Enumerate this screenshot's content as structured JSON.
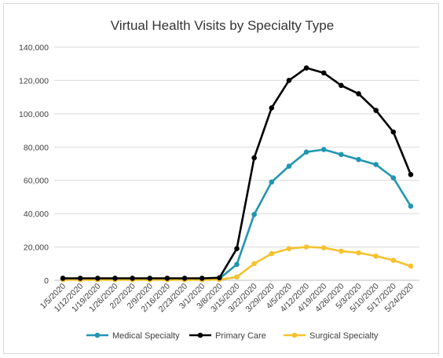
{
  "chart_data": {
    "type": "line",
    "title": "Virtual Health Visits by Specialty Type",
    "xlabel": "",
    "ylabel": "",
    "ylim": [
      0,
      140000
    ],
    "yticks": [
      0,
      20000,
      40000,
      60000,
      80000,
      100000,
      120000,
      140000
    ],
    "ytick_labels": [
      "0",
      "20,000",
      "40,000",
      "60,000",
      "80,000",
      "100,000",
      "120,000",
      "140,000"
    ],
    "categories": [
      "1/5/2020",
      "1/12/2020",
      "1/19/2020",
      "1/26/2020",
      "2/2/2020",
      "2/9/2020",
      "2/16/2020",
      "2/23/2020",
      "3/1/2020",
      "3/8/2020",
      "3/15/2020",
      "3/22/2020",
      "3/29/2020",
      "4/5/2020",
      "4/12/2020",
      "4/19/2020",
      "4/26/2020",
      "5/3/2020",
      "5/10/2020",
      "5/17/2020",
      "5/24/2020"
    ],
    "grid": true,
    "legend_position": "bottom",
    "series": [
      {
        "name": "Medical Specialty",
        "color": "#2196b0",
        "values": [
          800,
          800,
          800,
          800,
          800,
          800,
          800,
          800,
          800,
          1000,
          9500,
          39500,
          59000,
          68500,
          77000,
          78500,
          75500,
          72500,
          69500,
          61500,
          44500
        ]
      },
      {
        "name": "Primary Care",
        "color": "#000000",
        "values": [
          1200,
          1200,
          1200,
          1200,
          1200,
          1200,
          1200,
          1200,
          1200,
          1500,
          19000,
          73500,
          103500,
          120000,
          127500,
          124500,
          117000,
          112000,
          102000,
          89000,
          63500
        ]
      },
      {
        "name": "Surgical Specialty",
        "color": "#f5c230",
        "values": [
          300,
          300,
          300,
          300,
          300,
          300,
          300,
          300,
          300,
          400,
          2000,
          10000,
          16000,
          19000,
          20000,
          19500,
          17500,
          16500,
          14500,
          12000,
          8500
        ]
      }
    ]
  }
}
